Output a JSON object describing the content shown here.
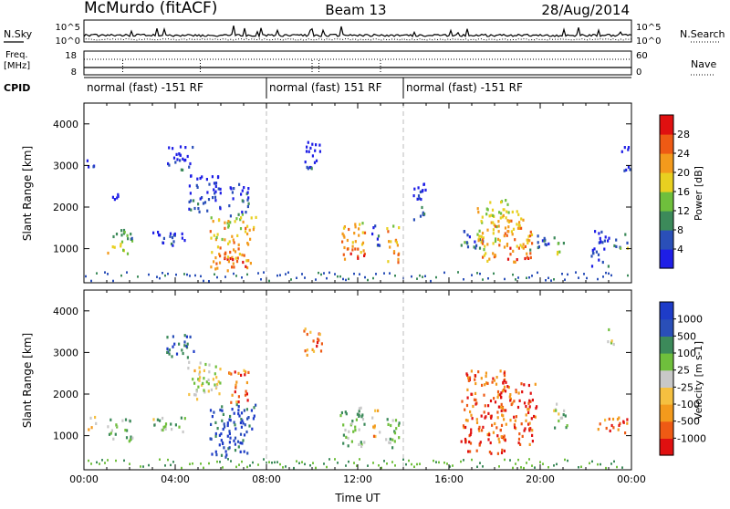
{
  "header": {
    "station": "McMurdo (fitACF)",
    "beam": "Beam 13",
    "date": "28/Aug/2014"
  },
  "noise_panel": {
    "left_label": "N.Sky",
    "left_ticks": [
      "10^5",
      "10^0"
    ],
    "right_label": "N.Search",
    "right_ticks": [
      "10^5",
      "10^0"
    ]
  },
  "freq_panel": {
    "left_label_lines": [
      "Freq.",
      "[MHz]"
    ],
    "left_ticks": [
      "18",
      "8"
    ],
    "right_label": "Nave",
    "right_ticks": [
      "60",
      "0"
    ]
  },
  "cpid_panel": {
    "label": "CPID",
    "segments": [
      {
        "label": "normal (fast) -151 RF",
        "start_h": 0,
        "end_h": 8
      },
      {
        "label": "normal (fast) 151 RF",
        "start_h": 8,
        "end_h": 14
      },
      {
        "label": "normal (fast) -151 RF",
        "start_h": 14,
        "end_h": 24
      }
    ]
  },
  "colors": {
    "power": [
      "#1e1ee6",
      "#2a4fb8",
      "#3c8a5a",
      "#6fbf3c",
      "#e8d020",
      "#f39a1c",
      "#ee5a14",
      "#e01010"
    ],
    "velocity": [
      "#e01010",
      "#ee5a14",
      "#f39a1c",
      "#f5c040",
      "#c8c8c8",
      "#6fbf3c",
      "#3c8a5a",
      "#2a4fb8",
      "#1e3cc8"
    ]
  },
  "chart_data": [
    {
      "type": "heatmap",
      "name": "power",
      "xlabel": "",
      "ylabel": "Slant Range [km]",
      "xlim": [
        0,
        24
      ],
      "ylim": [
        180,
        4500
      ],
      "yticks": [
        1000,
        2000,
        3000,
        4000
      ],
      "ytick_labels": [
        "1000",
        "2000",
        "3000",
        "4000"
      ],
      "colorbar": {
        "label": "Power [dB]",
        "ticks": [
          "4",
          "8",
          "12",
          "16",
          "20",
          "24",
          "28"
        ],
        "range": [
          0,
          30
        ]
      },
      "echo_regions": [
        {
          "t0": 0.1,
          "t1": 0.5,
          "r0": 2900,
          "r1": 3200,
          "level": 0.15
        },
        {
          "t0": 1.0,
          "t1": 2.1,
          "r0": 900,
          "r1": 1500,
          "level": 0.55
        },
        {
          "t0": 1.1,
          "t1": 1.5,
          "r0": 2000,
          "r1": 2400,
          "level": 0.15
        },
        {
          "t0": 3.0,
          "t1": 4.4,
          "r0": 1100,
          "r1": 1500,
          "level": 0.2
        },
        {
          "t0": 3.6,
          "t1": 4.8,
          "r0": 2900,
          "r1": 3500,
          "level": 0.2
        },
        {
          "t0": 4.5,
          "t1": 6.0,
          "r0": 1900,
          "r1": 2800,
          "level": 0.2
        },
        {
          "t0": 5.5,
          "t1": 7.5,
          "r0": 500,
          "r1": 1800,
          "level": 0.8
        },
        {
          "t0": 6.3,
          "t1": 7.2,
          "r0": 1800,
          "r1": 2600,
          "level": 0.3
        },
        {
          "t0": 9.6,
          "t1": 10.4,
          "r0": 2900,
          "r1": 3600,
          "level": 0.15
        },
        {
          "t0": 11.2,
          "t1": 12.3,
          "r0": 700,
          "r1": 1700,
          "level": 0.85
        },
        {
          "t0": 12.6,
          "t1": 13.0,
          "r0": 1000,
          "r1": 1700,
          "level": 0.3
        },
        {
          "t0": 13.2,
          "t1": 13.8,
          "r0": 700,
          "r1": 1600,
          "level": 0.8
        },
        {
          "t0": 14.4,
          "t1": 15.0,
          "r0": 1600,
          "r1": 2600,
          "level": 0.2
        },
        {
          "t0": 16.4,
          "t1": 17.5,
          "r0": 1000,
          "r1": 1500,
          "level": 0.35
        },
        {
          "t0": 17.2,
          "t1": 18.6,
          "r0": 700,
          "r1": 2200,
          "level": 0.75
        },
        {
          "t0": 18.3,
          "t1": 19.6,
          "r0": 700,
          "r1": 2000,
          "level": 0.8
        },
        {
          "t0": 19.5,
          "t1": 20.4,
          "r0": 1000,
          "r1": 1400,
          "level": 0.35
        },
        {
          "t0": 20.5,
          "t1": 21.0,
          "r0": 900,
          "r1": 1300,
          "level": 0.5
        },
        {
          "t0": 22.2,
          "t1": 23.0,
          "r0": 600,
          "r1": 1500,
          "level": 0.2
        },
        {
          "t0": 23.2,
          "t1": 23.8,
          "r0": 1000,
          "r1": 1400,
          "level": 0.4
        },
        {
          "t0": 23.5,
          "t1": 23.9,
          "r0": 2900,
          "r1": 3500,
          "level": 0.15
        }
      ]
    },
    {
      "type": "heatmap",
      "name": "velocity",
      "xlabel": "Time UT",
      "ylabel": "Slant Range [km]",
      "xlim": [
        0,
        24
      ],
      "ylim": [
        180,
        4500
      ],
      "yticks": [
        1000,
        2000,
        3000,
        4000
      ],
      "ytick_labels": [
        "1000",
        "2000",
        "3000",
        "4000"
      ],
      "xticks": [
        0,
        4,
        8,
        12,
        16,
        20,
        24
      ],
      "xtick_labels": [
        "00:00",
        "04:00",
        "08:00",
        "12:00",
        "16:00",
        "20:00",
        "00:00"
      ],
      "colorbar": {
        "label": "Velocity [m s-1]",
        "ticks": [
          "1000",
          "500",
          "100",
          "25",
          "-25",
          "-100",
          "-500",
          "-1000"
        ]
      },
      "echo_regions": [
        {
          "t0": 0.1,
          "t1": 0.5,
          "r0": 1100,
          "r1": 1500,
          "level": 0.3
        },
        {
          "t0": 1.0,
          "t1": 2.1,
          "r0": 900,
          "r1": 1500,
          "level": 0.6
        },
        {
          "t0": 3.0,
          "t1": 4.4,
          "r0": 1100,
          "r1": 1500,
          "level": 0.6
        },
        {
          "t0": 3.6,
          "t1": 4.8,
          "r0": 2900,
          "r1": 3500,
          "level": 0.85
        },
        {
          "t0": 4.5,
          "t1": 6.0,
          "r0": 1900,
          "r1": 2800,
          "level": 0.5
        },
        {
          "t0": 5.5,
          "t1": 7.5,
          "r0": 500,
          "r1": 1800,
          "level": 0.9
        },
        {
          "t0": 6.3,
          "t1": 7.2,
          "r0": 1800,
          "r1": 2600,
          "level": 0.2
        },
        {
          "t0": 9.6,
          "t1": 10.4,
          "r0": 2900,
          "r1": 3600,
          "level": 0.25
        },
        {
          "t0": 11.2,
          "t1": 12.3,
          "r0": 700,
          "r1": 1700,
          "level": 0.6
        },
        {
          "t0": 12.6,
          "t1": 13.0,
          "r0": 1000,
          "r1": 1700,
          "level": 0.35
        },
        {
          "t0": 13.2,
          "t1": 13.8,
          "r0": 700,
          "r1": 1600,
          "level": 0.6
        },
        {
          "t0": 16.5,
          "t1": 18.5,
          "r0": 600,
          "r1": 2600,
          "level": 0.15
        },
        {
          "t0": 18.2,
          "t1": 19.8,
          "r0": 800,
          "r1": 2300,
          "level": 0.15
        },
        {
          "t0": 20.5,
          "t1": 21.2,
          "r0": 1200,
          "r1": 1800,
          "level": 0.6
        },
        {
          "t0": 22.5,
          "t1": 23.9,
          "r0": 1100,
          "r1": 1500,
          "level": 0.2
        },
        {
          "t0": 22.8,
          "t1": 23.2,
          "r0": 3200,
          "r1": 3600,
          "level": 0.6
        }
      ]
    }
  ]
}
